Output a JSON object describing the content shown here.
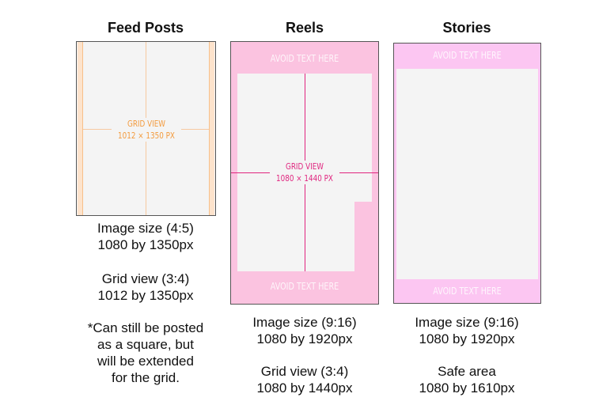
{
  "colors": {
    "feed_accent": "#f39a3c",
    "reels_accent": "#e0257f",
    "reels_pink": "#fbc3e0",
    "stories_pink": "#fcc6f2",
    "canvas": "#f4f4f4"
  },
  "feed": {
    "title": "Feed Posts",
    "grid_label": "GRID VIEW",
    "grid_size": "1012 × 1350 PX",
    "captions": [
      "Image size (4:5)",
      "1080 by 1350px",
      "Grid view (3:4)",
      "1012 by 1350px",
      "*Can still be posted",
      "as a square, but",
      "will be extended",
      "for the grid."
    ]
  },
  "reels": {
    "title": "Reels",
    "avoid_top": "AVOID TEXT HERE",
    "avoid_bottom": "AVOID TEXT HERE",
    "grid_label": "GRID VIEW",
    "grid_size": "1080 × 1440 PX",
    "captions": [
      "Image size (9:16)",
      "1080 by 1920px",
      "Grid view (3:4)",
      "1080 by 1440px"
    ]
  },
  "stories": {
    "title": "Stories",
    "avoid_top": "AVOID TEXT HERE",
    "avoid_bottom": "AVOID TEXT HERE",
    "captions": [
      "Image size (9:16)",
      "1080 by 1920px",
      "Safe area",
      "1080 by 1610px"
    ]
  }
}
